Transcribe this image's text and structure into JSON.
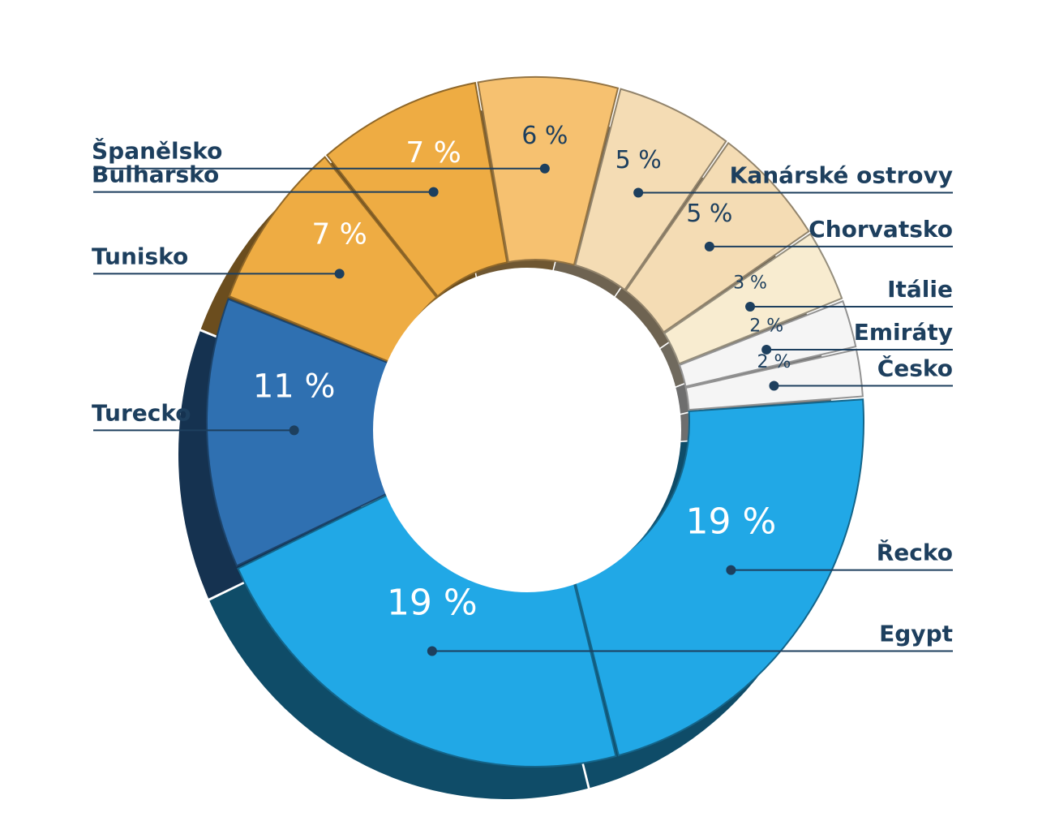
{
  "chart_data": {
    "type": "pie",
    "title": "",
    "categories": [
      "Řecko",
      "Egypt",
      "Turecko",
      "Tunisko",
      "Bulharsko",
      "Španělsko",
      "Kanárské ostrovy",
      "Chorvatsko",
      "Itálie",
      "Emiráty",
      "Česko"
    ],
    "values": [
      19,
      19,
      11,
      7,
      7,
      6,
      5,
      5,
      3,
      2,
      2
    ],
    "value_labels": [
      "19 %",
      "19 %",
      "11 %",
      "7 %",
      "7 %",
      "6 %",
      "5 %",
      "5 %",
      "3 %",
      "2 %",
      "2 %"
    ],
    "colors": [
      "#21a8e6",
      "#21a8e6",
      "#2f70b1",
      "#eeac43",
      "#eeac43",
      "#f6c170",
      "#f4dcb4",
      "#f4dcb4",
      "#f8ecd0",
      "#f5f5f5",
      "#f5f5f5"
    ],
    "legend": "outside-labels",
    "style": "3d-donut"
  }
}
